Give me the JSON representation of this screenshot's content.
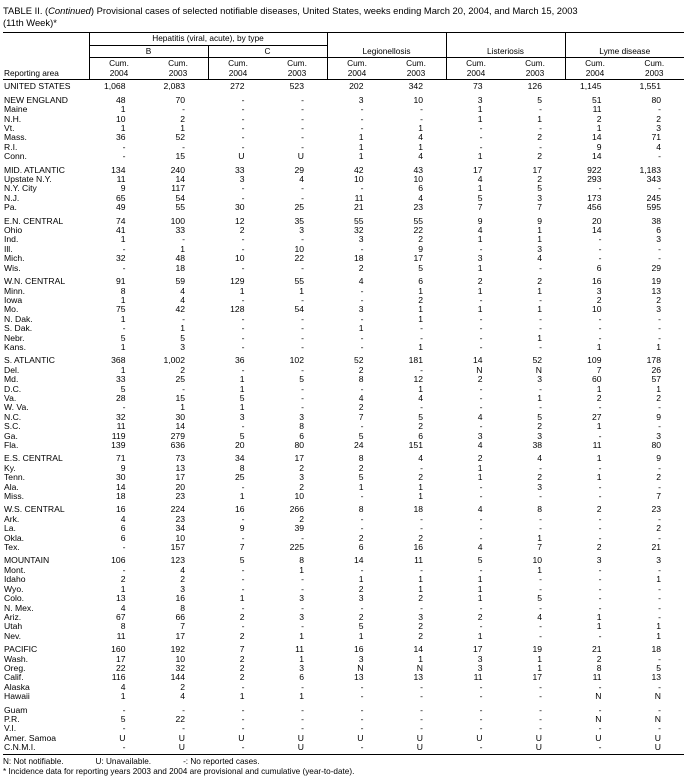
{
  "title": {
    "part1": "TABLE II. (",
    "part2": "Continued",
    "part3": ") Provisional cases of selected notifiable diseases, United States, weeks ending March 20, 2004, and March 15, 2003",
    "line2": "(11th Week)*"
  },
  "header": {
    "reporting_area_label": "Reporting area",
    "cum_label": "Cum.",
    "years": [
      "2004",
      "2003"
    ],
    "groups": {
      "hepatitis": "Hepatitis (viral, acute), by type",
      "hep_b": "B",
      "hep_c": "C",
      "legionellosis": "Legionellosis",
      "listeriosis": "Listeriosis",
      "lyme": "Lyme disease"
    }
  },
  "table": {
    "rows": [
      {
        "area": "UNITED STATES",
        "values": [
          "1,068",
          "2,083",
          "272",
          "523",
          "202",
          "342",
          "73",
          "126",
          "1,145",
          "1,551"
        ]
      },
      {
        "area": "NEW ENGLAND",
        "gap": true,
        "values": [
          "48",
          "70",
          "-",
          "-",
          "3",
          "10",
          "3",
          "5",
          "51",
          "80"
        ]
      },
      {
        "area": "Maine",
        "values": [
          "1",
          "-",
          "-",
          "-",
          "-",
          "-",
          "1",
          "-",
          "11",
          "-"
        ]
      },
      {
        "area": "N.H.",
        "values": [
          "10",
          "2",
          "-",
          "-",
          "-",
          "-",
          "1",
          "1",
          "2",
          "2"
        ]
      },
      {
        "area": "Vt.",
        "values": [
          "1",
          "1",
          "-",
          "-",
          "-",
          "1",
          "-",
          "-",
          "1",
          "3"
        ]
      },
      {
        "area": "Mass.",
        "values": [
          "36",
          "52",
          "-",
          "-",
          "1",
          "4",
          "-",
          "2",
          "14",
          "71"
        ]
      },
      {
        "area": "R.I.",
        "values": [
          "-",
          "-",
          "-",
          "-",
          "1",
          "1",
          "-",
          "-",
          "9",
          "4"
        ]
      },
      {
        "area": "Conn.",
        "values": [
          "-",
          "15",
          "U",
          "U",
          "1",
          "4",
          "1",
          "2",
          "14",
          "-"
        ]
      },
      {
        "area": "MID. ATLANTIC",
        "gap": true,
        "values": [
          "134",
          "240",
          "33",
          "29",
          "42",
          "43",
          "17",
          "17",
          "922",
          "1,183"
        ]
      },
      {
        "area": "Upstate N.Y.",
        "values": [
          "11",
          "14",
          "3",
          "4",
          "10",
          "10",
          "4",
          "2",
          "293",
          "343"
        ]
      },
      {
        "area": "N.Y. City",
        "values": [
          "9",
          "117",
          "-",
          "-",
          "-",
          "6",
          "1",
          "5",
          "-",
          "-"
        ]
      },
      {
        "area": "N.J.",
        "values": [
          "65",
          "54",
          "-",
          "-",
          "11",
          "4",
          "5",
          "3",
          "173",
          "245"
        ]
      },
      {
        "area": "Pa.",
        "values": [
          "49",
          "55",
          "30",
          "25",
          "21",
          "23",
          "7",
          "7",
          "456",
          "595"
        ]
      },
      {
        "area": "E.N. CENTRAL",
        "gap": true,
        "values": [
          "74",
          "100",
          "12",
          "35",
          "55",
          "55",
          "9",
          "9",
          "20",
          "38"
        ]
      },
      {
        "area": "Ohio",
        "values": [
          "41",
          "33",
          "2",
          "3",
          "32",
          "22",
          "4",
          "1",
          "14",
          "6"
        ]
      },
      {
        "area": "Ind.",
        "values": [
          "1",
          "-",
          "-",
          "-",
          "3",
          "2",
          "1",
          "1",
          "-",
          "3"
        ]
      },
      {
        "area": "Ill.",
        "values": [
          "-",
          "1",
          "-",
          "10",
          "-",
          "9",
          "-",
          "3",
          "-",
          "-"
        ]
      },
      {
        "area": "Mich.",
        "values": [
          "32",
          "48",
          "10",
          "22",
          "18",
          "17",
          "3",
          "4",
          "-",
          "-"
        ]
      },
      {
        "area": "Wis.",
        "values": [
          "-",
          "18",
          "-",
          "-",
          "2",
          "5",
          "1",
          "-",
          "6",
          "29"
        ]
      },
      {
        "area": "W.N. CENTRAL",
        "gap": true,
        "values": [
          "91",
          "59",
          "129",
          "55",
          "4",
          "6",
          "2",
          "2",
          "16",
          "19"
        ]
      },
      {
        "area": "Minn.",
        "values": [
          "8",
          "4",
          "1",
          "1",
          "-",
          "1",
          "1",
          "1",
          "3",
          "13"
        ]
      },
      {
        "area": "Iowa",
        "values": [
          "1",
          "4",
          "-",
          "-",
          "-",
          "2",
          "-",
          "-",
          "2",
          "2"
        ]
      },
      {
        "area": "Mo.",
        "values": [
          "75",
          "42",
          "128",
          "54",
          "3",
          "1",
          "1",
          "1",
          "10",
          "3"
        ]
      },
      {
        "area": "N. Dak.",
        "values": [
          "1",
          "-",
          "-",
          "-",
          "-",
          "1",
          "-",
          "-",
          "-",
          "-"
        ]
      },
      {
        "area": "S. Dak.",
        "values": [
          "-",
          "1",
          "-",
          "-",
          "1",
          "-",
          "-",
          "-",
          "-",
          "-"
        ]
      },
      {
        "area": "Nebr.",
        "values": [
          "5",
          "5",
          "-",
          "-",
          "-",
          "-",
          "-",
          "1",
          "-",
          "-"
        ]
      },
      {
        "area": "Kans.",
        "values": [
          "1",
          "3",
          "-",
          "-",
          "-",
          "1",
          "-",
          "-",
          "1",
          "1"
        ]
      },
      {
        "area": "S. ATLANTIC",
        "gap": true,
        "values": [
          "368",
          "1,002",
          "36",
          "102",
          "52",
          "181",
          "14",
          "52",
          "109",
          "178"
        ]
      },
      {
        "area": "Del.",
        "values": [
          "1",
          "2",
          "-",
          "-",
          "2",
          "-",
          "N",
          "N",
          "7",
          "26"
        ]
      },
      {
        "area": "Md.",
        "values": [
          "33",
          "25",
          "1",
          "5",
          "8",
          "12",
          "2",
          "3",
          "60",
          "57"
        ]
      },
      {
        "area": "D.C.",
        "values": [
          "5",
          "-",
          "1",
          "-",
          "-",
          "1",
          "-",
          "-",
          "1",
          "1"
        ]
      },
      {
        "area": "Va.",
        "values": [
          "28",
          "15",
          "5",
          "-",
          "4",
          "4",
          "-",
          "1",
          "2",
          "2"
        ]
      },
      {
        "area": "W. Va.",
        "values": [
          "-",
          "1",
          "1",
          "-",
          "2",
          "-",
          "-",
          "-",
          "-",
          "-"
        ]
      },
      {
        "area": "N.C.",
        "values": [
          "32",
          "30",
          "3",
          "3",
          "7",
          "5",
          "4",
          "5",
          "27",
          "9"
        ]
      },
      {
        "area": "S.C.",
        "values": [
          "11",
          "14",
          "-",
          "8",
          "-",
          "2",
          "-",
          "2",
          "1",
          "-"
        ]
      },
      {
        "area": "Ga.",
        "values": [
          "119",
          "279",
          "5",
          "6",
          "5",
          "6",
          "3",
          "3",
          "-",
          "3"
        ]
      },
      {
        "area": "Fla.",
        "values": [
          "139",
          "636",
          "20",
          "80",
          "24",
          "151",
          "4",
          "38",
          "11",
          "80"
        ]
      },
      {
        "area": "E.S. CENTRAL",
        "gap": true,
        "values": [
          "71",
          "73",
          "34",
          "17",
          "8",
          "4",
          "2",
          "4",
          "1",
          "9"
        ]
      },
      {
        "area": "Ky.",
        "values": [
          "9",
          "13",
          "8",
          "2",
          "2",
          "-",
          "1",
          "-",
          "-",
          "-"
        ]
      },
      {
        "area": "Tenn.",
        "values": [
          "30",
          "17",
          "25",
          "3",
          "5",
          "2",
          "1",
          "2",
          "1",
          "2"
        ]
      },
      {
        "area": "Ala.",
        "values": [
          "14",
          "20",
          "-",
          "2",
          "1",
          "1",
          "-",
          "3",
          "-",
          "-"
        ]
      },
      {
        "area": "Miss.",
        "values": [
          "18",
          "23",
          "1",
          "10",
          "-",
          "1",
          "-",
          "-",
          "-",
          "7"
        ]
      },
      {
        "area": "W.S. CENTRAL",
        "gap": true,
        "values": [
          "16",
          "224",
          "16",
          "266",
          "8",
          "18",
          "4",
          "8",
          "2",
          "23"
        ]
      },
      {
        "area": "Ark.",
        "values": [
          "4",
          "23",
          "-",
          "2",
          "-",
          "-",
          "-",
          "-",
          "-",
          "-"
        ]
      },
      {
        "area": "La.",
        "values": [
          "6",
          "34",
          "9",
          "39",
          "-",
          "-",
          "-",
          "-",
          "-",
          "2"
        ]
      },
      {
        "area": "Okla.",
        "values": [
          "6",
          "10",
          "-",
          "-",
          "2",
          "2",
          "-",
          "1",
          "-",
          "-"
        ]
      },
      {
        "area": "Tex.",
        "values": [
          "-",
          "157",
          "7",
          "225",
          "6",
          "16",
          "4",
          "7",
          "2",
          "21"
        ]
      },
      {
        "area": "MOUNTAIN",
        "gap": true,
        "values": [
          "106",
          "123",
          "5",
          "8",
          "14",
          "11",
          "5",
          "10",
          "3",
          "3"
        ]
      },
      {
        "area": "Mont.",
        "values": [
          "-",
          "4",
          "-",
          "1",
          "-",
          "-",
          "-",
          "1",
          "-",
          "-"
        ]
      },
      {
        "area": "Idaho",
        "values": [
          "2",
          "2",
          "-",
          "-",
          "1",
          "1",
          "1",
          "-",
          "-",
          "1"
        ]
      },
      {
        "area": "Wyo.",
        "values": [
          "1",
          "3",
          "-",
          "-",
          "2",
          "1",
          "1",
          "-",
          "-",
          "-"
        ]
      },
      {
        "area": "Colo.",
        "values": [
          "13",
          "16",
          "1",
          "3",
          "3",
          "2",
          "1",
          "5",
          "-",
          "-"
        ]
      },
      {
        "area": "N. Mex.",
        "values": [
          "4",
          "8",
          "-",
          "-",
          "-",
          "-",
          "-",
          "-",
          "-",
          "-"
        ]
      },
      {
        "area": "Ariz.",
        "values": [
          "67",
          "66",
          "2",
          "3",
          "2",
          "3",
          "2",
          "4",
          "1",
          "-"
        ]
      },
      {
        "area": "Utah",
        "values": [
          "8",
          "7",
          "-",
          "-",
          "5",
          "2",
          "-",
          "-",
          "1",
          "1"
        ]
      },
      {
        "area": "Nev.",
        "values": [
          "11",
          "17",
          "2",
          "1",
          "1",
          "2",
          "1",
          "-",
          "-",
          "1"
        ]
      },
      {
        "area": "PACIFIC",
        "gap": true,
        "values": [
          "160",
          "192",
          "7",
          "11",
          "16",
          "14",
          "17",
          "19",
          "21",
          "18"
        ]
      },
      {
        "area": "Wash.",
        "values": [
          "17",
          "10",
          "2",
          "1",
          "3",
          "1",
          "3",
          "1",
          "2",
          "-"
        ]
      },
      {
        "area": "Oreg.",
        "values": [
          "22",
          "32",
          "2",
          "3",
          "N",
          "N",
          "3",
          "1",
          "8",
          "5"
        ]
      },
      {
        "area": "Calif.",
        "values": [
          "116",
          "144",
          "2",
          "6",
          "13",
          "13",
          "11",
          "17",
          "11",
          "13"
        ]
      },
      {
        "area": "Alaska",
        "values": [
          "4",
          "2",
          "-",
          "-",
          "-",
          "-",
          "-",
          "-",
          "-",
          "-"
        ]
      },
      {
        "area": "Hawaii",
        "values": [
          "1",
          "4",
          "1",
          "1",
          "-",
          "-",
          "-",
          "-",
          "N",
          "N"
        ]
      },
      {
        "area": "Guam",
        "gap": true,
        "values": [
          "-",
          "-",
          "-",
          "-",
          "-",
          "-",
          "-",
          "-",
          "-",
          "-"
        ]
      },
      {
        "area": "P.R.",
        "values": [
          "5",
          "22",
          "-",
          "-",
          "-",
          "-",
          "-",
          "-",
          "N",
          "N"
        ]
      },
      {
        "area": "V.I.",
        "values": [
          "-",
          "-",
          "-",
          "-",
          "-",
          "-",
          "-",
          "-",
          "-",
          "-"
        ]
      },
      {
        "area": "Amer. Samoa",
        "values": [
          "U",
          "U",
          "U",
          "U",
          "U",
          "U",
          "U",
          "U",
          "U",
          "U"
        ]
      },
      {
        "area": "C.N.M.I.",
        "values": [
          "-",
          "U",
          "-",
          "U",
          "-",
          "U",
          "-",
          "U",
          "-",
          "U"
        ]
      }
    ]
  },
  "footnotes": {
    "legend": [
      "N: Not notifiable.",
      "U: Unavailable.",
      "-: No reported cases."
    ],
    "note": "* Incidence data for reporting years 2003 and 2004 are provisional and cumulative (year-to-date)."
  }
}
